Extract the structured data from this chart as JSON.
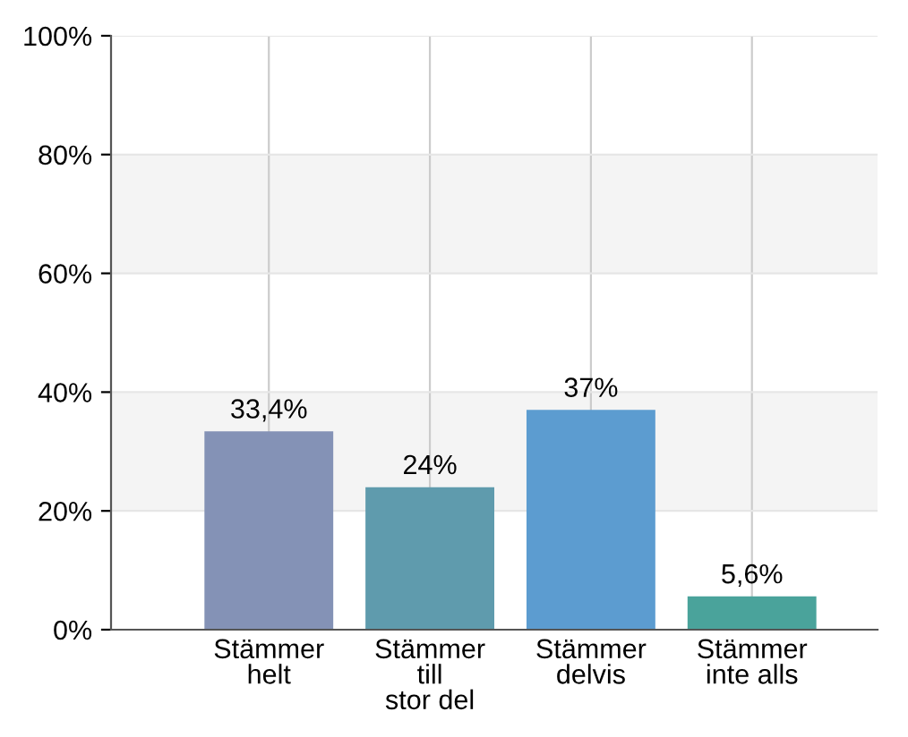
{
  "chart_data": {
    "type": "bar",
    "categories": [
      "Stämmer\nhelt",
      "Stämmer\ntill\nstor del",
      "Stämmer\ndelvis",
      "Stämmer\ninte alls"
    ],
    "values": [
      33.4,
      24,
      37,
      5.6
    ],
    "colors": [
      "#8492b6",
      "#5f9bad",
      "#5c9cd0",
      "#4aa39b"
    ],
    "value_labels": [
      "33,4%",
      "24%",
      "37%",
      "5,6%"
    ],
    "ylim": [
      0,
      100
    ],
    "yticks": [
      {
        "value": 0,
        "label": "0%"
      },
      {
        "value": 20,
        "label": "20%"
      },
      {
        "value": 40,
        "label": "40%"
      },
      {
        "value": 60,
        "label": "60%"
      },
      {
        "value": 80,
        "label": "80%"
      },
      {
        "value": 100,
        "label": "100%"
      }
    ],
    "bands": [
      {
        "axis": "y",
        "from": 20,
        "to": 40,
        "color": "#f4f4f4"
      },
      {
        "axis": "y",
        "from": 60,
        "to": 80,
        "color": "#f4f4f4"
      }
    ],
    "grid": true
  }
}
